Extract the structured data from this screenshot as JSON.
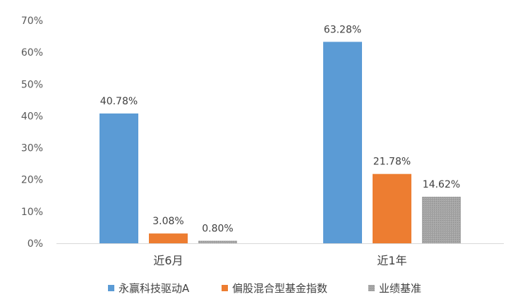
{
  "chart_data": {
    "type": "bar",
    "categories": [
      "近6月",
      "近1年"
    ],
    "series": [
      {
        "name": "永赢科技驱动A",
        "values": [
          40.78,
          63.28
        ],
        "color": "#5B9BD5",
        "pattern": "solid"
      },
      {
        "name": "偏股混合型基金指数",
        "values": [
          3.08,
          21.78
        ],
        "color": "#ED7D31",
        "pattern": "solid"
      },
      {
        "name": "业绩基准",
        "values": [
          0.8,
          14.62
        ],
        "color": "#A5A5A5",
        "pattern": "hatched"
      }
    ],
    "ylim": [
      0,
      70
    ],
    "yticks": [
      0,
      10,
      20,
      30,
      40,
      50,
      60,
      70
    ],
    "ytick_labels": [
      "0%",
      "10%",
      "20%",
      "30%",
      "40%",
      "50%",
      "60%",
      "70%"
    ],
    "data_labels": [
      [
        "40.78%",
        "63.28%"
      ],
      [
        "3.08%",
        "21.78%"
      ],
      [
        "0.80%",
        "14.62%"
      ]
    ],
    "grid": false,
    "legend_position": "bottom",
    "title": "",
    "xlabel": "",
    "ylabel": ""
  }
}
